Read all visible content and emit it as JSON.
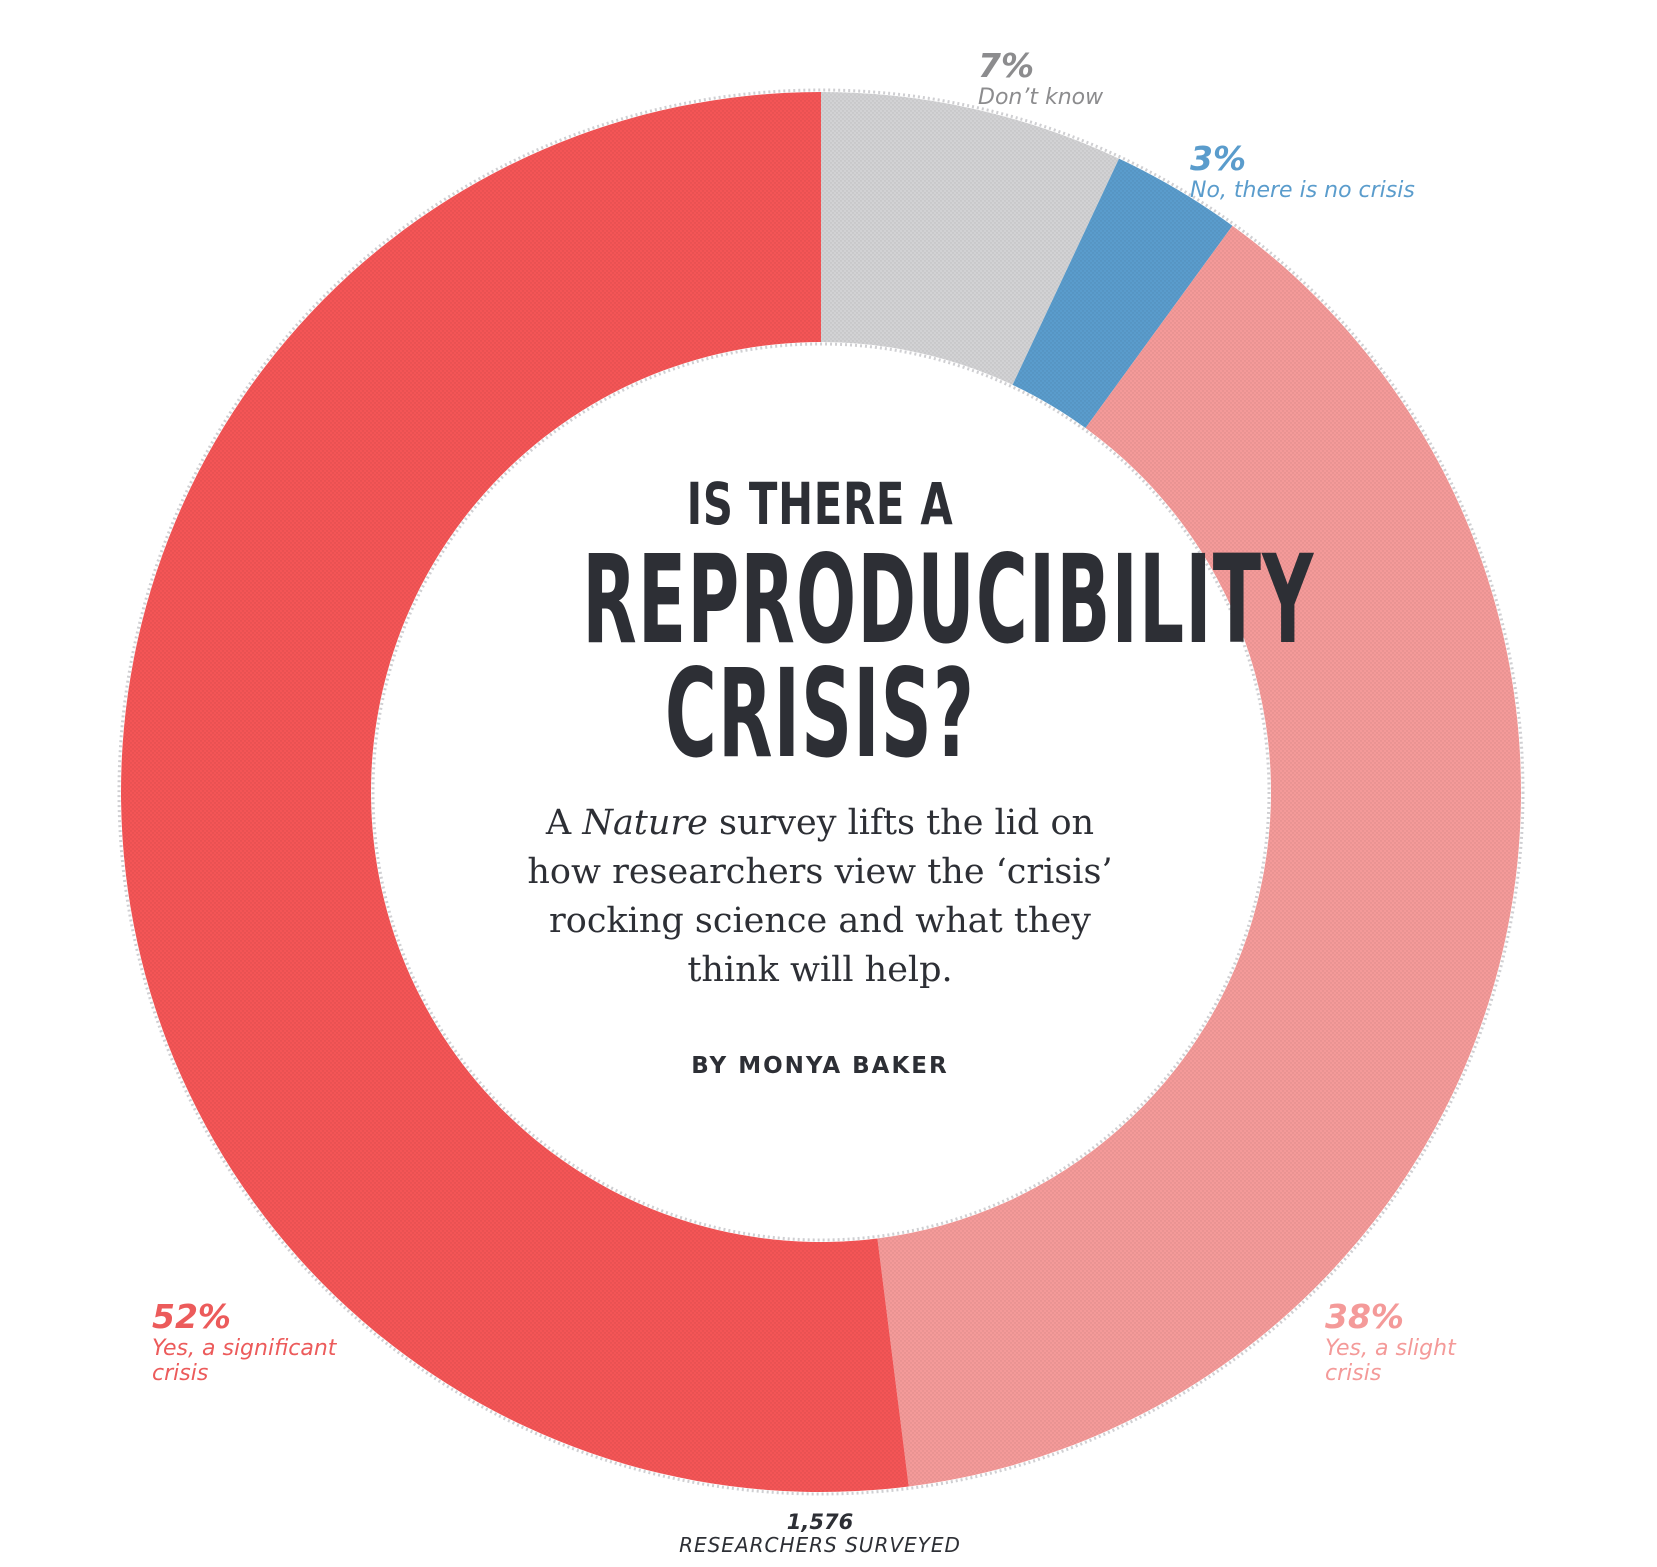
{
  "chart_data": {
    "type": "pie",
    "variant": "donut",
    "title_lines": [
      "IS THERE A",
      "REPRODUCIBILITY",
      "CRISIS?"
    ],
    "subtitle": "A Nature survey lifts the lid on how researchers view the ‘crisis’ rocking science and what they think will help.",
    "subtitle_italic_word": "Nature",
    "deck_parts": {
      "before": "A ",
      "italic": "Nature",
      "after": " survey lifts the lid on how researchers view the ‘crisis’ rocking science and what they think will help."
    },
    "byline": "BY MONYA BAKER",
    "total": {
      "value": "1,576",
      "label": "RESEARCHERS SURVEYED"
    },
    "slices": [
      {
        "label": "Don’t know",
        "value": 7,
        "display": "7%",
        "color": "#d2d2d4"
      },
      {
        "label": "No, there is no crisis",
        "value": 3,
        "display": "3%",
        "color": "#5a9ccc"
      },
      {
        "label": "Yes, a slight crisis",
        "value": 38,
        "display": "38%",
        "color": "#f49a99"
      },
      {
        "label": "Yes, a significant crisis",
        "value": 52,
        "display": "52%",
        "color": "#f45556"
      }
    ],
    "label_colors": {
      "dont_know": "#8c8c8e",
      "no_crisis": "#5a9ccc",
      "slight": "#f49a99",
      "significant": "#ec5b5b"
    }
  }
}
